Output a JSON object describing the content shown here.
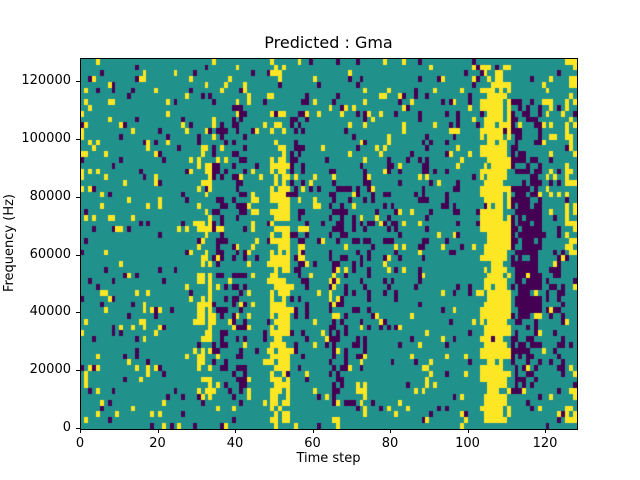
{
  "chart_data": {
    "type": "heatmap",
    "title": "Predicted : Gma",
    "xlabel": "Time step",
    "ylabel": "Frequency (Hz)",
    "xlim": [
      0,
      128
    ],
    "ylim": [
      0,
      128000
    ],
    "xticks": [
      0,
      20,
      40,
      60,
      80,
      100,
      120
    ],
    "yticks": [
      0,
      20000,
      40000,
      60000,
      80000,
      100000,
      120000
    ],
    "grid_cols": 128,
    "grid_rows": 64,
    "classes": {
      "0": "purple",
      "1": "teal",
      "2": "yellow"
    },
    "colormap": {
      "0": "#440154",
      "1": "#21918c",
      "2": "#fde725"
    },
    "background_value": 1,
    "noise": {
      "seed": 42,
      "p_purple": 0.045,
      "p_yellow": 0.05
    },
    "bands": [
      {
        "value": 2,
        "cols": [
          0,
          2
        ],
        "rows": [
          40,
          63
        ],
        "density": 0.15
      },
      {
        "value": 2,
        "cols": [
          30,
          33
        ],
        "rows": [
          5,
          48
        ],
        "density": 0.4
      },
      {
        "value": 0,
        "cols": [
          34,
          37
        ],
        "rows": [
          10,
          52
        ],
        "density": 0.25
      },
      {
        "value": 0,
        "cols": [
          39,
          42
        ],
        "rows": [
          4,
          56
        ],
        "density": 0.3
      },
      {
        "value": 2,
        "cols": [
          43,
          45
        ],
        "rows": [
          20,
          40
        ],
        "density": 0.2
      },
      {
        "value": 2,
        "cols": [
          49,
          53
        ],
        "rows": [
          1,
          46
        ],
        "density": 0.75
      },
      {
        "value": 2,
        "cols": [
          49,
          52
        ],
        "rows": [
          46,
          62
        ],
        "density": 0.3
      },
      {
        "value": 0,
        "cols": [
          54,
          58
        ],
        "rows": [
          8,
          58
        ],
        "density": 0.28
      },
      {
        "value": 2,
        "cols": [
          56,
          58
        ],
        "rows": [
          28,
          34
        ],
        "density": 0.3
      },
      {
        "value": 0,
        "cols": [
          64,
          68
        ],
        "rows": [
          4,
          44
        ],
        "density": 0.35
      },
      {
        "value": 2,
        "cols": [
          64,
          66
        ],
        "rows": [
          18,
          26
        ],
        "density": 0.25
      },
      {
        "value": 0,
        "cols": [
          70,
          74
        ],
        "rows": [
          10,
          50
        ],
        "density": 0.22
      },
      {
        "value": 2,
        "cols": [
          71,
          73
        ],
        "rows": [
          2,
          8
        ],
        "density": 0.3
      },
      {
        "value": 0,
        "cols": [
          78,
          82
        ],
        "rows": [
          16,
          46
        ],
        "density": 0.22
      },
      {
        "value": 0,
        "cols": [
          86,
          90
        ],
        "rows": [
          24,
          52
        ],
        "density": 0.2
      },
      {
        "value": 2,
        "cols": [
          88,
          90
        ],
        "rows": [
          6,
          10
        ],
        "density": 0.25
      },
      {
        "value": 0,
        "cols": [
          94,
          97
        ],
        "rows": [
          30,
          56
        ],
        "density": 0.2
      },
      {
        "value": 2,
        "cols": [
          103,
          110
        ],
        "rows": [
          1,
          62
        ],
        "density": 0.55
      },
      {
        "value": 2,
        "cols": [
          105,
          108
        ],
        "rows": [
          2,
          58
        ],
        "density": 0.9
      },
      {
        "value": 0,
        "cols": [
          111,
          118
        ],
        "rows": [
          6,
          56
        ],
        "density": 0.45
      },
      {
        "value": 0,
        "cols": [
          113,
          117
        ],
        "rows": [
          20,
          44
        ],
        "density": 0.65
      },
      {
        "value": 2,
        "cols": [
          119,
          121
        ],
        "rows": [
          40,
          56
        ],
        "density": 0.25
      },
      {
        "value": 0,
        "cols": [
          121,
          124
        ],
        "rows": [
          8,
          30
        ],
        "density": 0.25
      },
      {
        "value": 2,
        "cols": [
          125,
          127
        ],
        "rows": [
          30,
          63
        ],
        "density": 0.3
      },
      {
        "value": 2,
        "cols": [
          125,
          127
        ],
        "rows": [
          0,
          6
        ],
        "density": 0.3
      }
    ]
  }
}
